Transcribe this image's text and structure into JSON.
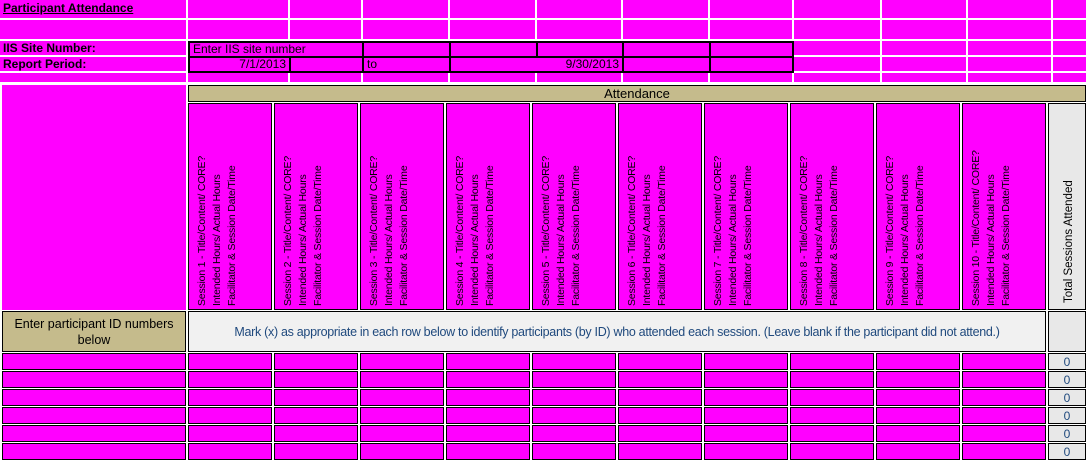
{
  "title": "Participant Attendance",
  "form": {
    "iis_site_label": "IIS Site Number:",
    "iis_site_value": "Enter IIS site number",
    "report_period_label": "Report Period:",
    "report_start": "7/1/2013",
    "report_to": "to",
    "report_end": "9/30/2013"
  },
  "attendance_header": "Attendance",
  "total_header": "Total Sessions Attended",
  "sessions": [
    {
      "line1": "Session 1 - Title/Content/ CORE?",
      "line2": "Intended Hours/ Actual Hours",
      "line3": "Facilitator & Session Date/Time"
    },
    {
      "line1": "Session 2 - Title/Content/ CORE?",
      "line2": "Intended Hours/ Actual Hours",
      "line3": "Facilitator & Session Date/Time"
    },
    {
      "line1": "Session 3 - Title/Content/ CORE?",
      "line2": "Intended Hours/ Actual Hours",
      "line3": "Facilitator & Session Date/Time"
    },
    {
      "line1": "Session 4 - Title/Content/ CORE?",
      "line2": "Intended Hours/ Actual Hours",
      "line3": "Facilitator & Session Date/Time"
    },
    {
      "line1": "Session 5 - Title/Content/ CORE?",
      "line2": "Intended Hours/ Actual Hours",
      "line3": "Facilitator & Session Date/Time"
    },
    {
      "line1": "Session 6 - Title/Content/ CORE?",
      "line2": "Intended Hours/ Actual Hours",
      "line3": "Facilitator & Session Date/Time"
    },
    {
      "line1": "Session 7 - Title/Content/ CORE?",
      "line2": "Intended Hours/ Actual Hours",
      "line3": "Facilitator & Session Date/Time"
    },
    {
      "line1": "Session 8 - Title/Content/ CORE?",
      "line2": "Intended Hours/ Actual Hours",
      "line3": "Facilitator & Session Date/Time"
    },
    {
      "line1": "Session 9 - Title/Content/ CORE?",
      "line2": "Intended Hours/ Actual Hours",
      "line3": "Facilitator & Session Date/Time"
    },
    {
      "line1": "Session 10 - Title/Content/ CORE?",
      "line2": "Intended Hours/ Actual Hours",
      "line3": "Facilitator & Session Date/Time"
    }
  ],
  "participants": {
    "id_header": "Enter participant ID numbers below",
    "instruction": "Mark (x) as appropriate in each row below to identify participants (by ID) who attended each session. (Leave blank if the participant did not attend.)",
    "rows": [
      {
        "id": "",
        "marks": [
          "",
          "",
          "",
          "",
          "",
          "",
          "",
          "",
          "",
          ""
        ],
        "total": "0"
      },
      {
        "id": "",
        "marks": [
          "",
          "",
          "",
          "",
          "",
          "",
          "",
          "",
          "",
          ""
        ],
        "total": "0"
      },
      {
        "id": "",
        "marks": [
          "",
          "",
          "",
          "",
          "",
          "",
          "",
          "",
          "",
          ""
        ],
        "total": "0"
      },
      {
        "id": "",
        "marks": [
          "",
          "",
          "",
          "",
          "",
          "",
          "",
          "",
          "",
          ""
        ],
        "total": "0"
      },
      {
        "id": "",
        "marks": [
          "",
          "",
          "",
          "",
          "",
          "",
          "",
          "",
          "",
          ""
        ],
        "total": "0"
      },
      {
        "id": "",
        "marks": [
          "",
          "",
          "",
          "",
          "",
          "",
          "",
          "",
          "",
          ""
        ],
        "total": "0"
      }
    ]
  },
  "colors": {
    "cell_fill": "#FF00FF",
    "band_tan": "#C5BB8C",
    "total_gray": "#E8E8E8",
    "instruction_bg": "#F1F1F1",
    "accent_blue": "#1F497D"
  }
}
